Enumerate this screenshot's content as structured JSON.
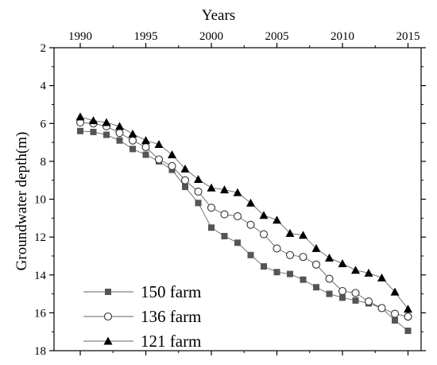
{
  "chart_data": {
    "type": "line",
    "title": "",
    "xlabel": "Years",
    "ylabel": "Groundwater depth(m)",
    "x_axis_position": "top",
    "y_axis_inverted": true,
    "xlim": [
      1988,
      2016
    ],
    "ylim": [
      2,
      18
    ],
    "x_ticks": [
      1990,
      1995,
      2000,
      2005,
      2010,
      2015
    ],
    "x_tick_labels": [
      "1990",
      "1995",
      "2000",
      "2005",
      "2010",
      "2015"
    ],
    "y_ticks": [
      2,
      4,
      6,
      8,
      10,
      12,
      14,
      16,
      18
    ],
    "y_tick_labels": [
      "2",
      "4",
      "6",
      "8",
      "10",
      "12",
      "14",
      "16",
      "18"
    ],
    "grid": false,
    "legend_position": "bottom-left",
    "x": [
      1990,
      1991,
      1992,
      1993,
      1994,
      1995,
      1996,
      1997,
      1998,
      1999,
      2000,
      2001,
      2002,
      2003,
      2004,
      2005,
      2006,
      2007,
      2008,
      2009,
      2010,
      2011,
      2012,
      2013,
      2014,
      2015
    ],
    "series": [
      {
        "name": "150 farm",
        "marker": "square-filled",
        "color": "#555555",
        "values": [
          6.4,
          6.45,
          6.6,
          6.9,
          7.35,
          7.65,
          8.0,
          8.45,
          9.35,
          10.2,
          11.5,
          11.95,
          12.3,
          12.95,
          13.55,
          13.85,
          13.95,
          14.25,
          14.65,
          15.0,
          15.2,
          15.35,
          15.5,
          15.75,
          16.4,
          16.95
        ]
      },
      {
        "name": "136 farm",
        "marker": "circle-open",
        "color": "#333333",
        "values": [
          5.95,
          6.0,
          6.15,
          6.5,
          6.9,
          7.25,
          7.9,
          8.25,
          9.0,
          9.6,
          10.45,
          10.8,
          10.9,
          11.35,
          11.85,
          12.6,
          12.95,
          13.05,
          13.45,
          14.2,
          14.85,
          14.95,
          15.4,
          15.75,
          16.05,
          16.2
        ]
      },
      {
        "name": "121 farm",
        "marker": "triangle-filled",
        "color": "#000000",
        "values": [
          5.65,
          5.85,
          5.95,
          6.15,
          6.55,
          6.9,
          7.1,
          7.65,
          8.4,
          8.95,
          9.4,
          9.5,
          9.65,
          10.2,
          10.85,
          11.1,
          11.8,
          11.9,
          12.6,
          13.1,
          13.4,
          13.75,
          13.9,
          14.15,
          14.9,
          15.8
        ]
      }
    ]
  }
}
